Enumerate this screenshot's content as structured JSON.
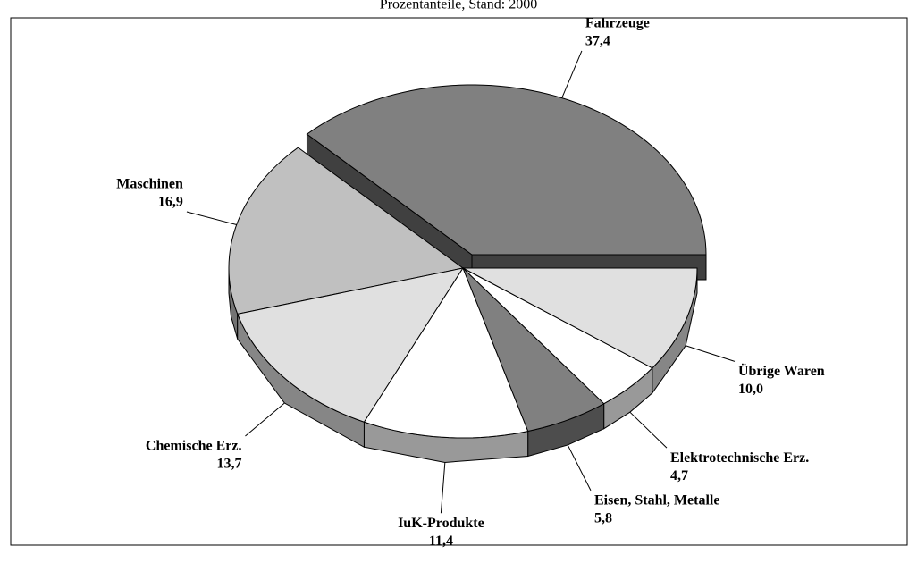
{
  "chart_data": {
    "type": "pie",
    "subtitle": "Prozentanteile, Stand: 2000",
    "categories": [
      "Fahrzeuge",
      "Maschinen",
      "Chemische Erz.",
      "IuK-Produkte",
      "Eisen, Stahl, Metalle",
      "Elektrotechnische Erz.",
      "Übrige Waren"
    ],
    "values": [
      37.4,
      16.9,
      13.7,
      11.4,
      5.8,
      4.7,
      10.0
    ],
    "value_labels": [
      "37,4",
      "16,9",
      "13,7",
      "11,4",
      "5,8",
      "4,7",
      "10,0"
    ],
    "colors": [
      "#808080",
      "#c0c0c0",
      "#e0e0e0",
      "#ffffff",
      "#808080",
      "#ffffff",
      "#e0e0e0"
    ],
    "exploded": [
      0
    ]
  }
}
